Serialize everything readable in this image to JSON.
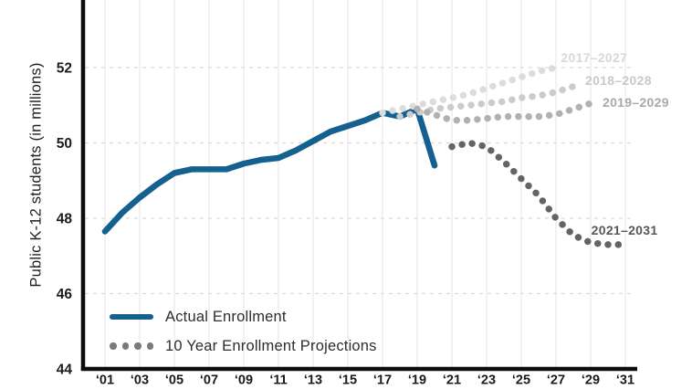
{
  "chart": {
    "ylabel": "Public K-12 students (in millions)",
    "legend": {
      "actual_label": "Actual Enrollment",
      "projections_label": "10 Year Enrollment Projections",
      "actual_swatch_color": "#14608e",
      "projection_dot_color": "#7a7a7a"
    }
  },
  "chart_data": {
    "type": "line",
    "title": "",
    "xlabel": "",
    "ylabel": "Public K-12 students (in millions)",
    "ylim": [
      44,
      53.8
    ],
    "xlim": [
      1999.6,
      2034.8
    ],
    "grid": {
      "vertical": "solid light",
      "horizontal": "dashed light"
    },
    "legend_position": "bottom-left inside plot",
    "yticks": [
      44,
      46,
      48,
      50,
      52
    ],
    "xticks": [
      {
        "year": 2001,
        "label": "‘01"
      },
      {
        "year": 2003,
        "label": "‘03"
      },
      {
        "year": 2005,
        "label": "‘05"
      },
      {
        "year": 2007,
        "label": "‘07"
      },
      {
        "year": 2009,
        "label": "‘09"
      },
      {
        "year": 2011,
        "label": "‘11"
      },
      {
        "year": 2013,
        "label": "‘13"
      },
      {
        "year": 2015,
        "label": "‘15"
      },
      {
        "year": 2017,
        "label": "‘17"
      },
      {
        "year": 2019,
        "label": "‘19"
      },
      {
        "year": 2021,
        "label": "‘21"
      },
      {
        "year": 2023,
        "label": "‘23"
      },
      {
        "year": 2025,
        "label": "‘25"
      },
      {
        "year": 2027,
        "label": "‘27"
      },
      {
        "year": 2029,
        "label": "‘29"
      },
      {
        "year": 2031,
        "label": "‘31"
      }
    ],
    "series": [
      {
        "name": "Actual Enrollment",
        "style": "solid",
        "color": "#14608e",
        "start_year": 2001,
        "values": [
          47.65,
          48.15,
          48.55,
          48.9,
          49.2,
          49.3,
          49.3,
          49.3,
          49.45,
          49.55,
          49.6,
          49.8,
          50.05,
          50.3,
          50.45,
          50.6,
          50.8,
          50.7,
          50.9,
          49.4
        ]
      },
      {
        "name": "2017–2027",
        "style": "dotted",
        "color": "#dcdcdc",
        "start_year": 2017,
        "values": [
          50.8,
          50.9,
          51.0,
          51.1,
          51.2,
          51.3,
          51.45,
          51.6,
          51.75,
          51.9,
          52.0
        ],
        "label": "2017–2027",
        "label_color": "#d8d8d8",
        "label_year": 2029.2,
        "label_value": 52.27
      },
      {
        "name": "2018–2028",
        "style": "dotted",
        "color": "#cbcbcb",
        "start_year": 2018,
        "values": [
          50.7,
          50.8,
          50.9,
          50.95,
          51.0,
          51.05,
          51.1,
          51.2,
          51.25,
          51.35,
          51.5
        ],
        "label": "2018–2028",
        "label_color": "#c9c9c9",
        "label_year": 2030.6,
        "label_value": 51.66
      },
      {
        "name": "2019–2029",
        "style": "dotted",
        "color": "#b1b1b1",
        "start_year": 2019,
        "values": [
          50.9,
          50.75,
          50.6,
          50.6,
          50.65,
          50.7,
          50.7,
          50.7,
          50.75,
          50.9,
          51.05
        ],
        "label": "2019–2029",
        "label_color": "#a9a9a9",
        "label_year": 2031.6,
        "label_value": 51.08
      },
      {
        "name": "2021–2031",
        "style": "dotted",
        "color": "#646464",
        "start_year": 2021,
        "values": [
          49.9,
          50.0,
          49.9,
          49.5,
          49.05,
          48.6,
          48.0,
          47.55,
          47.35,
          47.3,
          47.3
        ],
        "label": "2021–2031",
        "label_color": "#575757",
        "label_year": 2030.95,
        "label_value": 47.68
      }
    ]
  }
}
